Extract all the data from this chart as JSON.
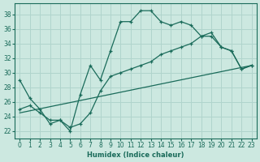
{
  "xlabel": "Humidex (Indice chaleur)",
  "bg_color": "#cce8e0",
  "grid_color": "#b0d4cc",
  "line_color": "#1a6b5a",
  "xlim": [
    -0.5,
    23.5
  ],
  "ylim": [
    21.0,
    39.5
  ],
  "xticks": [
    0,
    1,
    2,
    3,
    4,
    5,
    6,
    7,
    8,
    9,
    10,
    11,
    12,
    13,
    14,
    15,
    16,
    17,
    18,
    19,
    20,
    21,
    22,
    23
  ],
  "yticks": [
    22,
    24,
    26,
    28,
    30,
    32,
    34,
    36,
    38
  ],
  "series1_x": [
    0,
    1,
    2,
    3,
    4,
    5,
    6,
    7,
    8,
    9,
    10,
    11,
    12,
    13,
    14,
    15,
    16,
    17,
    18,
    19,
    20,
    21,
    22,
    23
  ],
  "series1_y": [
    29.0,
    26.5,
    25.0,
    23.0,
    23.5,
    22.0,
    27.0,
    31.0,
    29.0,
    33.0,
    37.0,
    37.0,
    38.5,
    38.5,
    37.0,
    36.5,
    37.0,
    36.5,
    35.0,
    35.0,
    33.5,
    33.0,
    30.5,
    31.0
  ],
  "series2_x": [
    0,
    1,
    2,
    3,
    4,
    5,
    6,
    7,
    8,
    9,
    10,
    11,
    12,
    13,
    14,
    15,
    16,
    17,
    18,
    19,
    20,
    21,
    22,
    23
  ],
  "series2_y": [
    25.0,
    25.5,
    24.5,
    23.5,
    23.5,
    22.5,
    23.0,
    24.5,
    27.5,
    29.5,
    30.0,
    30.5,
    31.0,
    31.5,
    32.5,
    33.0,
    33.5,
    34.0,
    35.0,
    35.5,
    33.5,
    33.0,
    30.5,
    31.0
  ],
  "series3_x": [
    0,
    23
  ],
  "series3_y": [
    24.5,
    31.0
  ]
}
